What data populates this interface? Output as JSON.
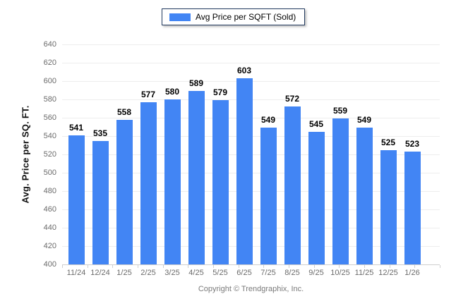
{
  "legend": {
    "label": "Avg Price per SQFT (Sold)",
    "swatch_color": "#4285f4",
    "border_color": "#223a5f",
    "position": "top-center"
  },
  "footer": {
    "text": "Copyright © Trendgraphix, Inc."
  },
  "chart_data": {
    "type": "bar",
    "title": "",
    "xlabel": "",
    "ylabel": "Avg. Price per SQ. FT.",
    "categories": [
      "11/24",
      "12/24",
      "1/25",
      "2/25",
      "3/25",
      "4/25",
      "5/25",
      "6/25",
      "7/25",
      "8/25",
      "9/25",
      "10/25",
      "11/25",
      "12/25",
      "1/26"
    ],
    "values": [
      541,
      535,
      558,
      577,
      580,
      589,
      579,
      603,
      549,
      572,
      545,
      559,
      549,
      525,
      523
    ],
    "series_name": "Avg Price per SQFT (Sold)",
    "ylim": [
      400,
      640
    ],
    "yticks": [
      400,
      420,
      440,
      460,
      480,
      500,
      520,
      540,
      560,
      580,
      600,
      620,
      640
    ],
    "grid": "horizontal",
    "data_labels": true,
    "legend_position": "top-center",
    "bar_color": "#4285f4",
    "gridline_color": "#ededed",
    "axis_color": "#cfcfcf",
    "tick_label_color": "#6b6b6b"
  }
}
